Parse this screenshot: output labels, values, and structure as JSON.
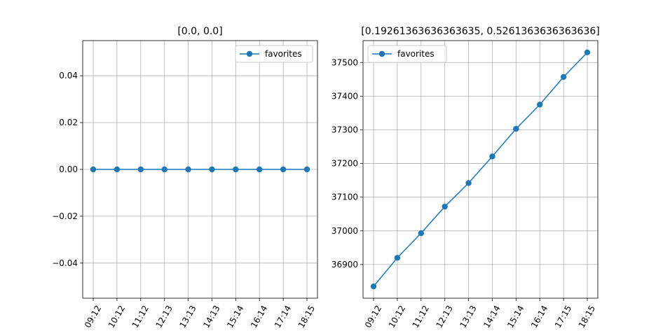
{
  "chart_data": [
    {
      "type": "line",
      "title": "[0.0, 0.0]",
      "x": [
        "09:12",
        "10:12",
        "11:12",
        "12:13",
        "13:13",
        "14:13",
        "15:14",
        "16:14",
        "17:14",
        "18:15"
      ],
      "series": [
        {
          "name": "favorites",
          "values": [
            0,
            0,
            0,
            0,
            0,
            0,
            0,
            0,
            0,
            0
          ],
          "color": "#1f77b4"
        }
      ],
      "ylim": [
        -0.055,
        0.055
      ],
      "yticks": [
        -0.04,
        -0.02,
        0.0,
        0.02,
        0.04
      ],
      "ytick_labels": [
        "−0.04",
        "−0.02",
        "0.00",
        "0.02",
        "0.04"
      ],
      "xlabel": "",
      "ylabel": "",
      "grid": true,
      "legend": "upper right"
    },
    {
      "type": "line",
      "title": "[0.19261363636363635, 0.5261363636363636]",
      "x": [
        "09:12",
        "10:12",
        "11:12",
        "12:13",
        "13:13",
        "14:14",
        "15:14",
        "16:14",
        "17:15",
        "18:15"
      ],
      "series": [
        {
          "name": "favorites",
          "values": [
            36835,
            36920,
            36993,
            37072,
            37142,
            37221,
            37303,
            37375,
            37457,
            37530
          ],
          "color": "#1f77b4"
        }
      ],
      "ylim": [
        36800,
        37565
      ],
      "yticks": [
        36900,
        37000,
        37100,
        37200,
        37300,
        37400,
        37500
      ],
      "ytick_labels": [
        "36900",
        "37000",
        "37100",
        "37200",
        "37300",
        "37400",
        "37500"
      ],
      "xlabel": "",
      "ylabel": "",
      "grid": true,
      "legend": "upper left"
    }
  ]
}
